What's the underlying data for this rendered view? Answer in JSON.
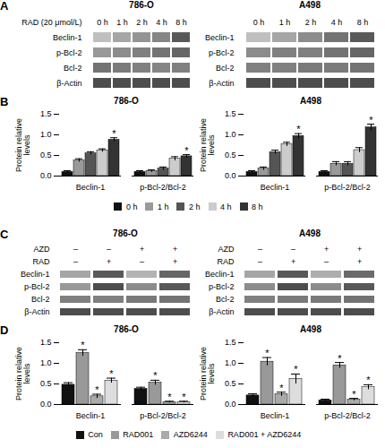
{
  "chart_data": [
    {
      "type": "blot",
      "title": "786-O",
      "annotations": [
        "A"
      ],
      "column_headers": [
        {
          "label": "RAD (20 μmol/L)",
          "values": [
            "0 h",
            "1 h",
            "2 h",
            "4 h",
            "8 h"
          ]
        }
      ],
      "rows": [
        "Beclin-1",
        "p-Bcl-2",
        "Bcl-2",
        "β-Actin"
      ],
      "cells": [
        [
          0.75,
          0.65,
          0.58,
          0.52,
          0.35
        ],
        [
          0.6,
          0.55,
          0.5,
          0.45,
          0.4
        ],
        [
          0.45,
          0.48,
          0.5,
          0.52,
          0.5
        ],
        [
          0.3,
          0.3,
          0.3,
          0.3,
          0.3
        ]
      ]
    },
    {
      "type": "blot",
      "title": "A498",
      "column_headers": [
        {
          "values": [
            "0 h",
            "1 h",
            "2 h",
            "4 h",
            "8 h"
          ]
        }
      ],
      "rows": [
        "Beclin-1",
        "p-Bcl-2",
        "Bcl-2",
        "β-Actin"
      ],
      "cells": [
        [
          0.75,
          0.65,
          0.55,
          0.45,
          0.35
        ],
        [
          0.55,
          0.5,
          0.5,
          0.45,
          0.4
        ],
        [
          0.5,
          0.5,
          0.48,
          0.48,
          0.45
        ],
        [
          0.3,
          0.3,
          0.3,
          0.3,
          0.3
        ]
      ]
    },
    {
      "type": "bar",
      "title": "786-O",
      "annotations": [
        "B"
      ],
      "categories": [
        "Beclin-1",
        "p-Bcl-2/Bcl-2"
      ],
      "series": [
        {
          "name": "0 h",
          "color": "#111111",
          "values": [
            0.1,
            0.1
          ],
          "errors": [
            0.03,
            0.03
          ]
        },
        {
          "name": "1 h",
          "color": "#999999",
          "values": [
            0.38,
            0.12
          ],
          "errors": [
            0.04,
            0.03
          ]
        },
        {
          "name": "2 h",
          "color": "#555555",
          "values": [
            0.55,
            0.18
          ],
          "errors": [
            0.04,
            0.04
          ]
        },
        {
          "name": "4 h",
          "color": "#cccccc",
          "values": [
            0.62,
            0.42
          ],
          "errors": [
            0.04,
            0.05
          ]
        },
        {
          "name": "8 h",
          "color": "#333333",
          "values": [
            0.88,
            0.48
          ],
          "errors": [
            0.05,
            0.04
          ],
          "annotations": [
            "*",
            "*"
          ]
        }
      ],
      "ylabel": "Protein relative\nlevels",
      "ylim": [
        0,
        1.5
      ],
      "yticks": [
        {
          "value": 0,
          "label": "0.0"
        },
        {
          "value": 0.5,
          "label": "0.5"
        },
        {
          "value": 1,
          "label": "1.0"
        },
        {
          "value": 1.5,
          "label": "1.5"
        }
      ],
      "legend": "bottom"
    },
    {
      "type": "bar",
      "title": "A498",
      "categories": [
        "Beclin-1",
        "p-Bcl-2/Bcl-2"
      ],
      "series": [
        {
          "name": "0 h",
          "color": "#111111",
          "values": [
            0.1,
            0.1
          ],
          "errors": [
            0.03,
            0.03
          ]
        },
        {
          "name": "1 h",
          "color": "#999999",
          "values": [
            0.18,
            0.3
          ],
          "errors": [
            0.04,
            0.05
          ]
        },
        {
          "name": "2 h",
          "color": "#555555",
          "values": [
            0.58,
            0.3
          ],
          "errors": [
            0.05,
            0.05
          ]
        },
        {
          "name": "4 h",
          "color": "#cccccc",
          "values": [
            0.77,
            0.63
          ],
          "errors": [
            0.05,
            0.06
          ]
        },
        {
          "name": "8 h",
          "color": "#333333",
          "values": [
            0.97,
            1.18
          ],
          "errors": [
            0.06,
            0.08
          ],
          "annotations": [
            "*",
            "*"
          ]
        }
      ],
      "ylabel": "Protein relative\nlevels",
      "ylim": [
        0,
        1.5
      ],
      "yticks": [
        {
          "value": 0,
          "label": "0.0"
        },
        {
          "value": 0.5,
          "label": "0.5"
        },
        {
          "value": 1,
          "label": "1.0"
        },
        {
          "value": 1.5,
          "label": "1.5"
        }
      ]
    },
    {
      "type": "blot",
      "title": "786-O",
      "annotations": [
        "C"
      ],
      "column_headers": [
        {
          "label": "AZD",
          "values": [
            "–",
            "–",
            "+",
            "+"
          ]
        },
        {
          "label": "RAD",
          "values": [
            "–",
            "+",
            "–",
            "+"
          ]
        }
      ],
      "rows": [
        "Beclin-1",
        "p-Bcl-2",
        "Bcl-2",
        "β-Actin"
      ],
      "cells": [
        [
          0.65,
          0.35,
          0.7,
          0.4
        ],
        [
          0.6,
          0.3,
          0.55,
          0.35
        ],
        [
          0.5,
          0.5,
          0.48,
          0.45
        ],
        [
          0.3,
          0.3,
          0.3,
          0.3
        ]
      ]
    },
    {
      "type": "blot",
      "title": "A498",
      "column_headers": [
        {
          "label": "AZD",
          "values": [
            "–",
            "–",
            "+",
            "+"
          ]
        },
        {
          "label": "RAD",
          "values": [
            "–",
            "+",
            "–",
            "+"
          ]
        }
      ],
      "rows": [
        "Beclin-1",
        "p-Bcl-2",
        "Bcl-2",
        "β-Actin"
      ],
      "cells": [
        [
          0.65,
          0.35,
          0.68,
          0.42
        ],
        [
          0.55,
          0.3,
          0.55,
          0.35
        ],
        [
          0.5,
          0.48,
          0.48,
          0.45
        ],
        [
          0.3,
          0.3,
          0.3,
          0.3
        ]
      ]
    },
    {
      "type": "bar",
      "title": "786-O",
      "annotations": [
        "D"
      ],
      "categories": [
        "Beclin-1",
        "p-Bcl-2/Bcl-2"
      ],
      "series": [
        {
          "name": "Con",
          "color": "#111111",
          "values": [
            0.48,
            0.38
          ],
          "errors": [
            0.05,
            0.04
          ]
        },
        {
          "name": "RAD001",
          "color": "#999999",
          "values": [
            1.25,
            0.53
          ],
          "errors": [
            0.08,
            0.06
          ],
          "annotations": [
            "*",
            "*"
          ]
        },
        {
          "name": "AZD6244",
          "color": "#aaaaaa",
          "values": [
            0.2,
            0.06
          ],
          "errors": [
            0.05,
            0.02
          ],
          "annotations": [
            "*",
            "*"
          ]
        },
        {
          "name": "RAD001 + AZD6244",
          "color": "#dddddd",
          "values": [
            0.58,
            0.06
          ],
          "errors": [
            0.06,
            0.02
          ],
          "annotations": [
            "*",
            "*"
          ]
        }
      ],
      "ylabel": "Protein relative\nlevels",
      "ylim": [
        0,
        1.5
      ],
      "yticks": [
        {
          "value": 0,
          "label": "0.0"
        },
        {
          "value": 0.5,
          "label": "0.5"
        },
        {
          "value": 1,
          "label": "1.0"
        },
        {
          "value": 1.5,
          "label": "1.5"
        }
      ],
      "legend": "bottom"
    },
    {
      "type": "bar",
      "title": "A498",
      "categories": [
        "Beclin-1",
        "p-Bcl-2/Bcl-2"
      ],
      "series": [
        {
          "name": "Con",
          "color": "#111111",
          "values": [
            0.22,
            0.1
          ],
          "errors": [
            0.04,
            0.03
          ]
        },
        {
          "name": "RAD001",
          "color": "#999999",
          "values": [
            1.04,
            0.95
          ],
          "errors": [
            0.1,
            0.07
          ],
          "annotations": [
            "*",
            "*"
          ]
        },
        {
          "name": "AZD6244",
          "color": "#aaaaaa",
          "values": [
            0.25,
            0.12
          ],
          "errors": [
            0.05,
            0.03
          ],
          "annotations": [
            "*",
            "*"
          ]
        },
        {
          "name": "RAD001 + AZD6244",
          "color": "#dddddd",
          "values": [
            0.62,
            0.42
          ],
          "errors": [
            0.12,
            0.06
          ],
          "annotations": [
            "*",
            "*"
          ]
        }
      ],
      "ylabel": "Protein relative\nlevels",
      "ylim": [
        0,
        1.5
      ],
      "yticks": [
        {
          "value": 0,
          "label": "0.0"
        },
        {
          "value": 0.5,
          "label": "0.5"
        },
        {
          "value": 1,
          "label": "1.0"
        },
        {
          "value": 1.5,
          "label": "1.5"
        }
      ]
    }
  ]
}
